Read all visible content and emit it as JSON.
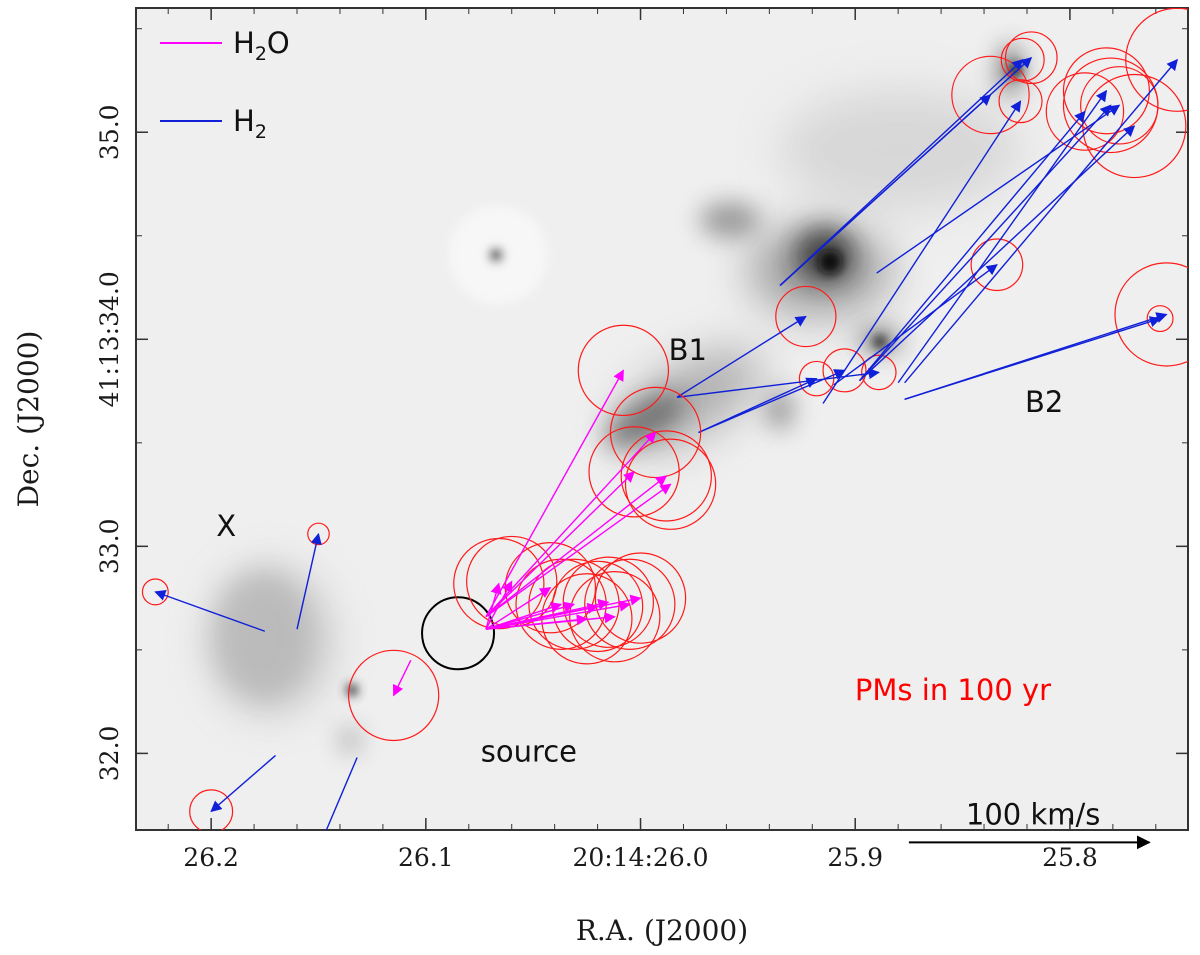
{
  "chart_data": {
    "type": "scatter",
    "xlabel": "R.A. (J2000)",
    "ylabel": "Dec. (J2000)",
    "xlim": [
      26.235,
      25.745
    ],
    "ylim": [
      31.63,
      35.6
    ],
    "x_ticks": [
      {
        "value": 26.2,
        "label": "26.2"
      },
      {
        "value": 26.1,
        "label": "26.1"
      },
      {
        "value": 26.0,
        "label": "20:14:26.0"
      },
      {
        "value": 25.9,
        "label": "25.9"
      },
      {
        "value": 25.8,
        "label": "25.8"
      }
    ],
    "y_ticks": [
      {
        "value": 32.0,
        "label": "32.0"
      },
      {
        "value": 33.0,
        "label": "33.0"
      },
      {
        "value": 34.0,
        "label": "41:13:34.0"
      },
      {
        "value": 35.0,
        "label": "35.0"
      }
    ],
    "legend": {
      "placement": "top-left",
      "entries": [
        {
          "name_main": "H",
          "name_sub": "2",
          "name_tail": "O",
          "color": "#ff00ff"
        },
        {
          "name_main": "H",
          "name_sub": "2",
          "name_tail": "",
          "color": "#1020d8"
        }
      ]
    },
    "region_labels": [
      {
        "text": "B1",
        "x": 25.978,
        "y": 33.9
      },
      {
        "text": "B2",
        "x": 25.812,
        "y": 33.65
      },
      {
        "text": "X",
        "x": 26.193,
        "y": 33.05
      },
      {
        "text": "source",
        "x": 26.052,
        "y": 31.96
      }
    ],
    "annotation": {
      "text": "PMs in 100 yr",
      "color": "#ff0000"
    },
    "scale_bar": {
      "label": "100 km/s",
      "x_from": 25.875,
      "x_to": 25.763,
      "y": 31.57
    },
    "source_position": {
      "ra": 26.085,
      "dec": 32.58
    },
    "h2o_arrows": [
      {
        "from": [
          26.072,
          32.6
        ],
        "to": [
          26.066,
          32.82
        ],
        "error_radius": 0.021
      },
      {
        "from": [
          26.072,
          32.6
        ],
        "to": [
          26.06,
          32.83
        ],
        "error_radius": 0.021
      },
      {
        "from": [
          26.072,
          32.6
        ],
        "to": [
          26.042,
          32.8
        ],
        "error_radius": 0.021
      },
      {
        "from": [
          26.072,
          32.6
        ],
        "to": [
          26.037,
          32.72
        ],
        "error_radius": 0.021
      },
      {
        "from": [
          26.072,
          32.6
        ],
        "to": [
          26.031,
          32.72
        ],
        "error_radius": 0.021
      },
      {
        "from": [
          26.072,
          32.6
        ],
        "to": [
          26.025,
          32.65
        ],
        "error_radius": 0.021
      },
      {
        "from": [
          26.072,
          32.6
        ],
        "to": [
          26.02,
          32.71
        ],
        "error_radius": 0.021
      },
      {
        "from": [
          26.072,
          32.6
        ],
        "to": [
          26.012,
          32.66
        ],
        "error_radius": 0.021
      },
      {
        "from": [
          26.072,
          32.6
        ],
        "to": [
          26.015,
          32.73
        ],
        "error_radius": 0.021
      },
      {
        "from": [
          26.072,
          32.6
        ],
        "to": [
          26.005,
          32.72
        ],
        "error_radius": 0.021
      },
      {
        "from": [
          26.072,
          32.6
        ],
        "to": [
          26.0,
          32.75
        ],
        "error_radius": 0.021
      },
      {
        "from": [
          26.072,
          32.66
        ],
        "to": [
          26.008,
          33.85
        ],
        "error_radius": 0.021
      },
      {
        "from": [
          26.072,
          32.66
        ],
        "to": [
          26.003,
          33.36
        ],
        "error_radius": 0.021
      },
      {
        "from": [
          26.072,
          32.66
        ],
        "to": [
          25.988,
          33.34
        ],
        "error_radius": 0.021
      },
      {
        "from": [
          26.072,
          32.66
        ],
        "to": [
          25.993,
          33.55
        ],
        "error_radius": 0.021
      },
      {
        "from": [
          26.072,
          32.66
        ],
        "to": [
          25.986,
          33.3
        ],
        "error_radius": 0.021
      },
      {
        "from": [
          26.107,
          32.45
        ],
        "to": [
          26.115,
          32.28
        ],
        "error_radius": 0.021
      }
    ],
    "h2_arrows": [
      {
        "from": [
          26.175,
          32.59
        ],
        "to": [
          26.226,
          32.78
        ],
        "error_radius": 0.006
      },
      {
        "from": [
          26.16,
          32.6
        ],
        "to": [
          26.15,
          33.06
        ],
        "error_radius": 0.005
      },
      {
        "from": [
          26.17,
          31.99
        ],
        "to": [
          26.2,
          31.72
        ],
        "error_radius": 0.01
      },
      {
        "from": [
          26.132,
          31.98
        ],
        "to": [
          26.15,
          31.54
        ],
        "error_radius": 0.005
      },
      {
        "from": [
          25.983,
          33.72
        ],
        "to": [
          25.923,
          34.11
        ],
        "error_radius": 0.014
      },
      {
        "from": [
          25.983,
          33.72
        ],
        "to": [
          25.889,
          33.84
        ],
        "error_radius": 0.008
      },
      {
        "from": [
          25.973,
          33.55
        ],
        "to": [
          25.918,
          33.81
        ],
        "error_radius": 0.008
      },
      {
        "from": [
          25.973,
          33.55
        ],
        "to": [
          25.905,
          33.85
        ],
        "error_radius": 0.01
      },
      {
        "from": [
          25.935,
          34.26
        ],
        "to": [
          25.822,
          35.35
        ],
        "error_radius": 0.01
      },
      {
        "from": [
          25.935,
          34.26
        ],
        "to": [
          25.818,
          35.36
        ],
        "error_radius": 0.012
      },
      {
        "from": [
          25.935,
          34.26
        ],
        "to": [
          25.837,
          35.18
        ],
        "error_radius": 0.018
      },
      {
        "from": [
          25.915,
          33.69
        ],
        "to": [
          25.823,
          35.15
        ],
        "error_radius": 0.01
      },
      {
        "from": [
          25.89,
          34.32
        ],
        "to": [
          25.777,
          35.13
        ],
        "error_radius": 0.018
      },
      {
        "from": [
          25.898,
          33.8
        ],
        "to": [
          25.781,
          35.13
        ],
        "error_radius": 0.022
      },
      {
        "from": [
          25.898,
          33.8
        ],
        "to": [
          25.77,
          35.03
        ],
        "error_radius": 0.024
      },
      {
        "from": [
          25.898,
          33.8
        ],
        "to": [
          25.793,
          35.1
        ],
        "error_radius": 0.018
      },
      {
        "from": [
          25.91,
          33.78
        ],
        "to": [
          25.834,
          34.36
        ],
        "error_radius": 0.012
      },
      {
        "from": [
          25.877,
          33.71
        ],
        "to": [
          25.755,
          34.12
        ],
        "error_radius": 0.024
      },
      {
        "from": [
          25.877,
          33.71
        ],
        "to": [
          25.758,
          34.1
        ],
        "error_radius": 0.006
      },
      {
        "from": [
          25.88,
          33.79
        ],
        "to": [
          25.783,
          35.2
        ],
        "error_radius": 0.02
      },
      {
        "from": [
          25.877,
          33.79
        ],
        "to": [
          25.75,
          35.35
        ],
        "error_radius": 0.024
      }
    ]
  }
}
